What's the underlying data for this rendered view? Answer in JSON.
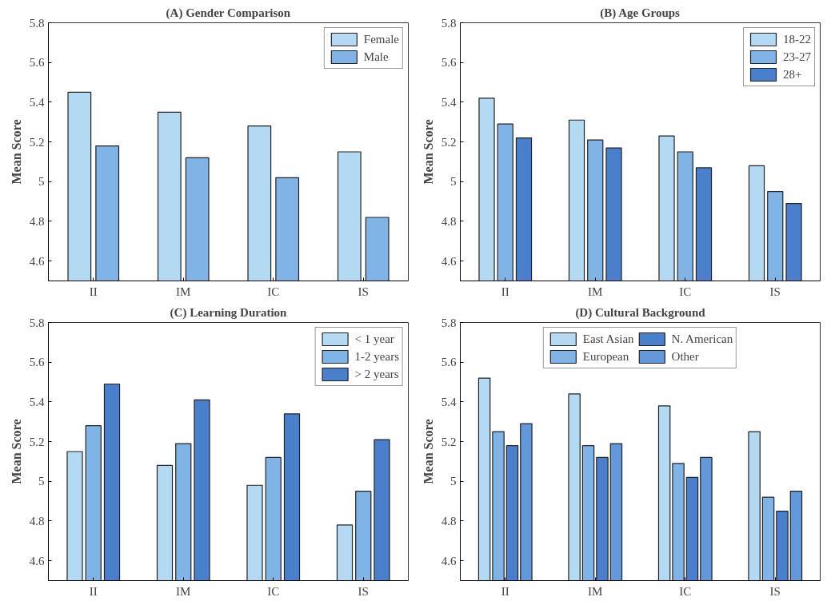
{
  "chart_data": [
    {
      "type": "bar",
      "title": "(A) Gender Comparison",
      "ylabel": "Mean Score",
      "categories": [
        "II",
        "IM",
        "IC",
        "IS"
      ],
      "ylim": [
        4.5,
        5.8
      ],
      "yticks": [
        4.6,
        4.8,
        5,
        5.2,
        5.4,
        5.6,
        5.8
      ],
      "grid": false,
      "legend": "top right",
      "series": [
        {
          "name": "Female",
          "color": "#b3daf2",
          "values": [
            5.45,
            5.35,
            5.28,
            5.15
          ]
        },
        {
          "name": "Male",
          "color": "#80b4e6",
          "values": [
            5.18,
            5.12,
            5.02,
            4.82
          ]
        }
      ]
    },
    {
      "type": "bar",
      "title": "(B) Age Groups",
      "ylabel": "Mean Score",
      "categories": [
        "II",
        "IM",
        "IC",
        "IS"
      ],
      "ylim": [
        4.5,
        5.8
      ],
      "yticks": [
        4.6,
        4.8,
        5,
        5.2,
        5.4,
        5.6,
        5.8
      ],
      "grid": false,
      "legend": "top right",
      "series": [
        {
          "name": "18-22",
          "color": "#b3daf2",
          "values": [
            5.42,
            5.31,
            5.23,
            5.08
          ]
        },
        {
          "name": "23-27",
          "color": "#80b4e6",
          "values": [
            5.29,
            5.21,
            5.15,
            4.95
          ]
        },
        {
          "name": "28+",
          "color": "#4a7fcc",
          "values": [
            5.22,
            5.17,
            5.07,
            4.89
          ]
        }
      ]
    },
    {
      "type": "bar",
      "title": "(C) Learning Duration",
      "ylabel": "Mean Score",
      "categories": [
        "II",
        "IM",
        "IC",
        "IS"
      ],
      "ylim": [
        4.5,
        5.8
      ],
      "yticks": [
        4.6,
        4.8,
        5,
        5.2,
        5.4,
        5.6,
        5.8
      ],
      "grid": false,
      "legend": "top right",
      "series": [
        {
          "name": "< 1 year",
          "color": "#b3daf2",
          "values": [
            5.15,
            5.08,
            4.98,
            4.78
          ]
        },
        {
          "name": "1-2 years",
          "color": "#80b4e6",
          "values": [
            5.28,
            5.19,
            5.12,
            4.95
          ]
        },
        {
          "name": "> 2 years",
          "color": "#4a7fcc",
          "values": [
            5.49,
            5.41,
            5.34,
            5.21
          ]
        }
      ]
    },
    {
      "type": "bar",
      "title": "(D) Cultural Background",
      "ylabel": "Mean Score",
      "categories": [
        "II",
        "IM",
        "IC",
        "IS"
      ],
      "ylim": [
        4.5,
        5.8
      ],
      "yticks": [
        4.6,
        4.8,
        5,
        5.2,
        5.4,
        5.6,
        5.8
      ],
      "grid": false,
      "legend": "top",
      "series": [
        {
          "name": "East Asian",
          "color": "#b3daf2",
          "values": [
            5.52,
            5.44,
            5.38,
            5.25
          ]
        },
        {
          "name": "European",
          "color": "#80b4e6",
          "values": [
            5.25,
            5.18,
            5.09,
            4.92
          ]
        },
        {
          "name": "N. American",
          "color": "#4a7fcc",
          "values": [
            5.18,
            5.12,
            5.02,
            4.85
          ]
        },
        {
          "name": "Other",
          "color": "#6398db",
          "values": [
            5.29,
            5.19,
            5.12,
            4.95
          ]
        }
      ]
    }
  ]
}
